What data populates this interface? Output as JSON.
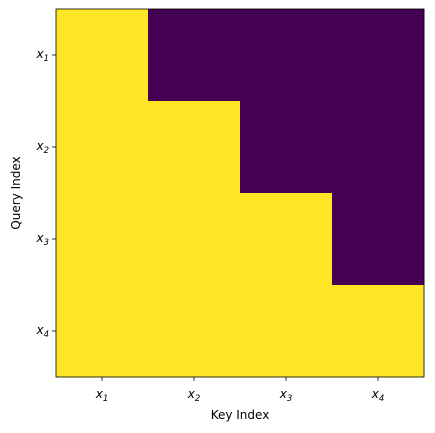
{
  "chart_data": {
    "type": "heatmap",
    "x_categories": [
      "x1",
      "x2",
      "x3",
      "x4"
    ],
    "y_categories": [
      "x1",
      "x2",
      "x3",
      "x4"
    ],
    "x_tick_labels": [
      {
        "base": "x",
        "sub": "1"
      },
      {
        "base": "x",
        "sub": "2"
      },
      {
        "base": "x",
        "sub": "3"
      },
      {
        "base": "x",
        "sub": "4"
      }
    ],
    "y_tick_labels": [
      {
        "base": "x",
        "sub": "1"
      },
      {
        "base": "x",
        "sub": "2"
      },
      {
        "base": "x",
        "sub": "3"
      },
      {
        "base": "x",
        "sub": "4"
      }
    ],
    "values": [
      [
        1,
        0,
        0,
        0
      ],
      [
        1,
        1,
        0,
        0
      ],
      [
        1,
        1,
        1,
        0
      ],
      [
        1,
        1,
        1,
        1
      ]
    ],
    "value_range": [
      0,
      1
    ],
    "colormap": {
      "low": "#440154",
      "high": "#fde725"
    },
    "xlabel": "Key Index",
    "ylabel": "Query Index",
    "title": "",
    "grid": false,
    "legend": "none"
  }
}
